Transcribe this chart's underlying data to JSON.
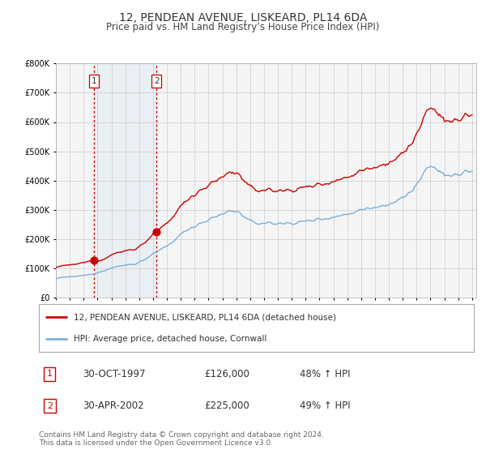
{
  "title": "12, PENDEAN AVENUE, LISKEARD, PL14 6DA",
  "subtitle": "Price paid vs. HM Land Registry’s House Price Index (HPI)",
  "sale1_price": 126000,
  "sale1_label": "30-OCT-1997",
  "sale1_pct": "48% ↑ HPI",
  "sale2_price": 225000,
  "sale2_label": "30-APR-2002",
  "sale2_pct": "49% ↑ HPI",
  "hpi_color": "#7ab0d8",
  "price_color": "#cc0000",
  "vline_color": "#cc0000",
  "shade_color": "#d6e4f0",
  "ylim": [
    0,
    800000
  ],
  "yticks": [
    0,
    100000,
    200000,
    300000,
    400000,
    500000,
    600000,
    700000,
    800000
  ],
  "legend_label1": "12, PENDEAN AVENUE, LISKEARD, PL14 6DA (detached house)",
  "legend_label2": "HPI: Average price, detached house, Cornwall",
  "footer": "Contains HM Land Registry data © Crown copyright and database right 2024.\nThis data is licensed under the Open Government Licence v3.0.",
  "background_color": "#ffffff",
  "plot_bg_color": "#f5f5f5"
}
